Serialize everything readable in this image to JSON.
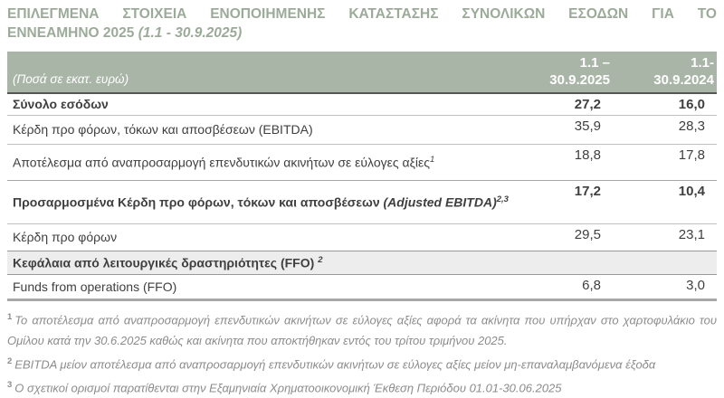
{
  "colors": {
    "header_bg": "#a9b5a7",
    "title_text": "#9cab99",
    "section_bg": "#ededed",
    "body_text": "#3f3f3f",
    "footnote_text": "#8c8c8c",
    "header_underline": "#565656",
    "table_bottom_border": "#a8a8a8"
  },
  "title": {
    "line1": "ΕΠΙΛΕΓΜΕΝΑ ΣΤΟΙΧΕΙΑ ΕΝΟΠΟΙΗΜΕΝΗΣ ΚΑΤΑΣΤΑΣΗΣ ΣΥΝΟΛΙΚΩΝ ΕΣΟΔΩΝ ΓΙΑ ΤΟ",
    "line2_text": "ΕΝΝΕΑΜΗΝΟ 2025",
    "line2_period": "(1.1 - 30.9.2025)"
  },
  "table": {
    "unit_label": "(Ποσά σε εκατ. ευρώ)",
    "columns": [
      {
        "line1": "1.1 –",
        "line2": "30.9.2025"
      },
      {
        "line1": "1.1-",
        "line2": "30.9.2024"
      }
    ],
    "rows": [
      {
        "label": "Σύνολο εσόδων",
        "style": "bold",
        "v2025": "27,2",
        "v2024": "16,0"
      },
      {
        "label": "Κέρδη προ φόρων, τόκων και αποσβέσεων (EBITDA)",
        "style": "normal",
        "v2025": "35,9",
        "v2024": "28,3"
      },
      {
        "label": "Αποτέλεσμα από αναπροσαρμογή επενδυτικών ακινήτων σε εύλογες αξίες",
        "sup": "1",
        "style": "normal",
        "v2025": "18,8",
        "v2024": "17,8"
      },
      {
        "label": "Προσαρμοσμένα Κέρδη προ φόρων, τόκων και αποσβέσεων",
        "label_italic": " (Adjusted EBITDA)",
        "sup": "2,3",
        "style": "bold",
        "v2025": "17,2",
        "v2024": "10,4"
      },
      {
        "label": "Κέρδη προ φόρων",
        "style": "normal",
        "v2025": "29,5",
        "v2024": "23,1"
      },
      {
        "label": "Κεφάλαια από λειτουργικές δραστηριότητες (FFO) ",
        "sup": "2",
        "style": "section",
        "v2025": "",
        "v2024": ""
      },
      {
        "label": "Funds from operations (FFO)",
        "style": "normal",
        "v2025": "6,8",
        "v2024": "3,0"
      }
    ]
  },
  "footnotes": [
    {
      "sup": "1",
      "text": "Το αποτέλεσμα από αναπροσαρμογή επενδυτικών ακινήτων σε εύλογες αξίες αφορά τα ακίνητα που υπήρχαν στο χαρτοφυλάκιο του Ομίλου κατά την 30.6.2025 καθώς και ακίνητα που αποκτήθηκαν εντός του τρίτου τριμήνου 2025."
    },
    {
      "sup": "2",
      "text": "EBITDA μείον αποτέλεσμα από αναπροσαρμογή επενδυτικών ακινήτων σε εύλογες αξίες μείον μη-επαναλαμβανόμενα έξοδα"
    },
    {
      "sup": "3",
      "text": "Ο σχετικοί ορισμοί παρατίθενται στην Εξαμηνιαία Χρηματοοικονομική Έκθεση Περιόδου 01.01-30.06.2025"
    }
  ]
}
